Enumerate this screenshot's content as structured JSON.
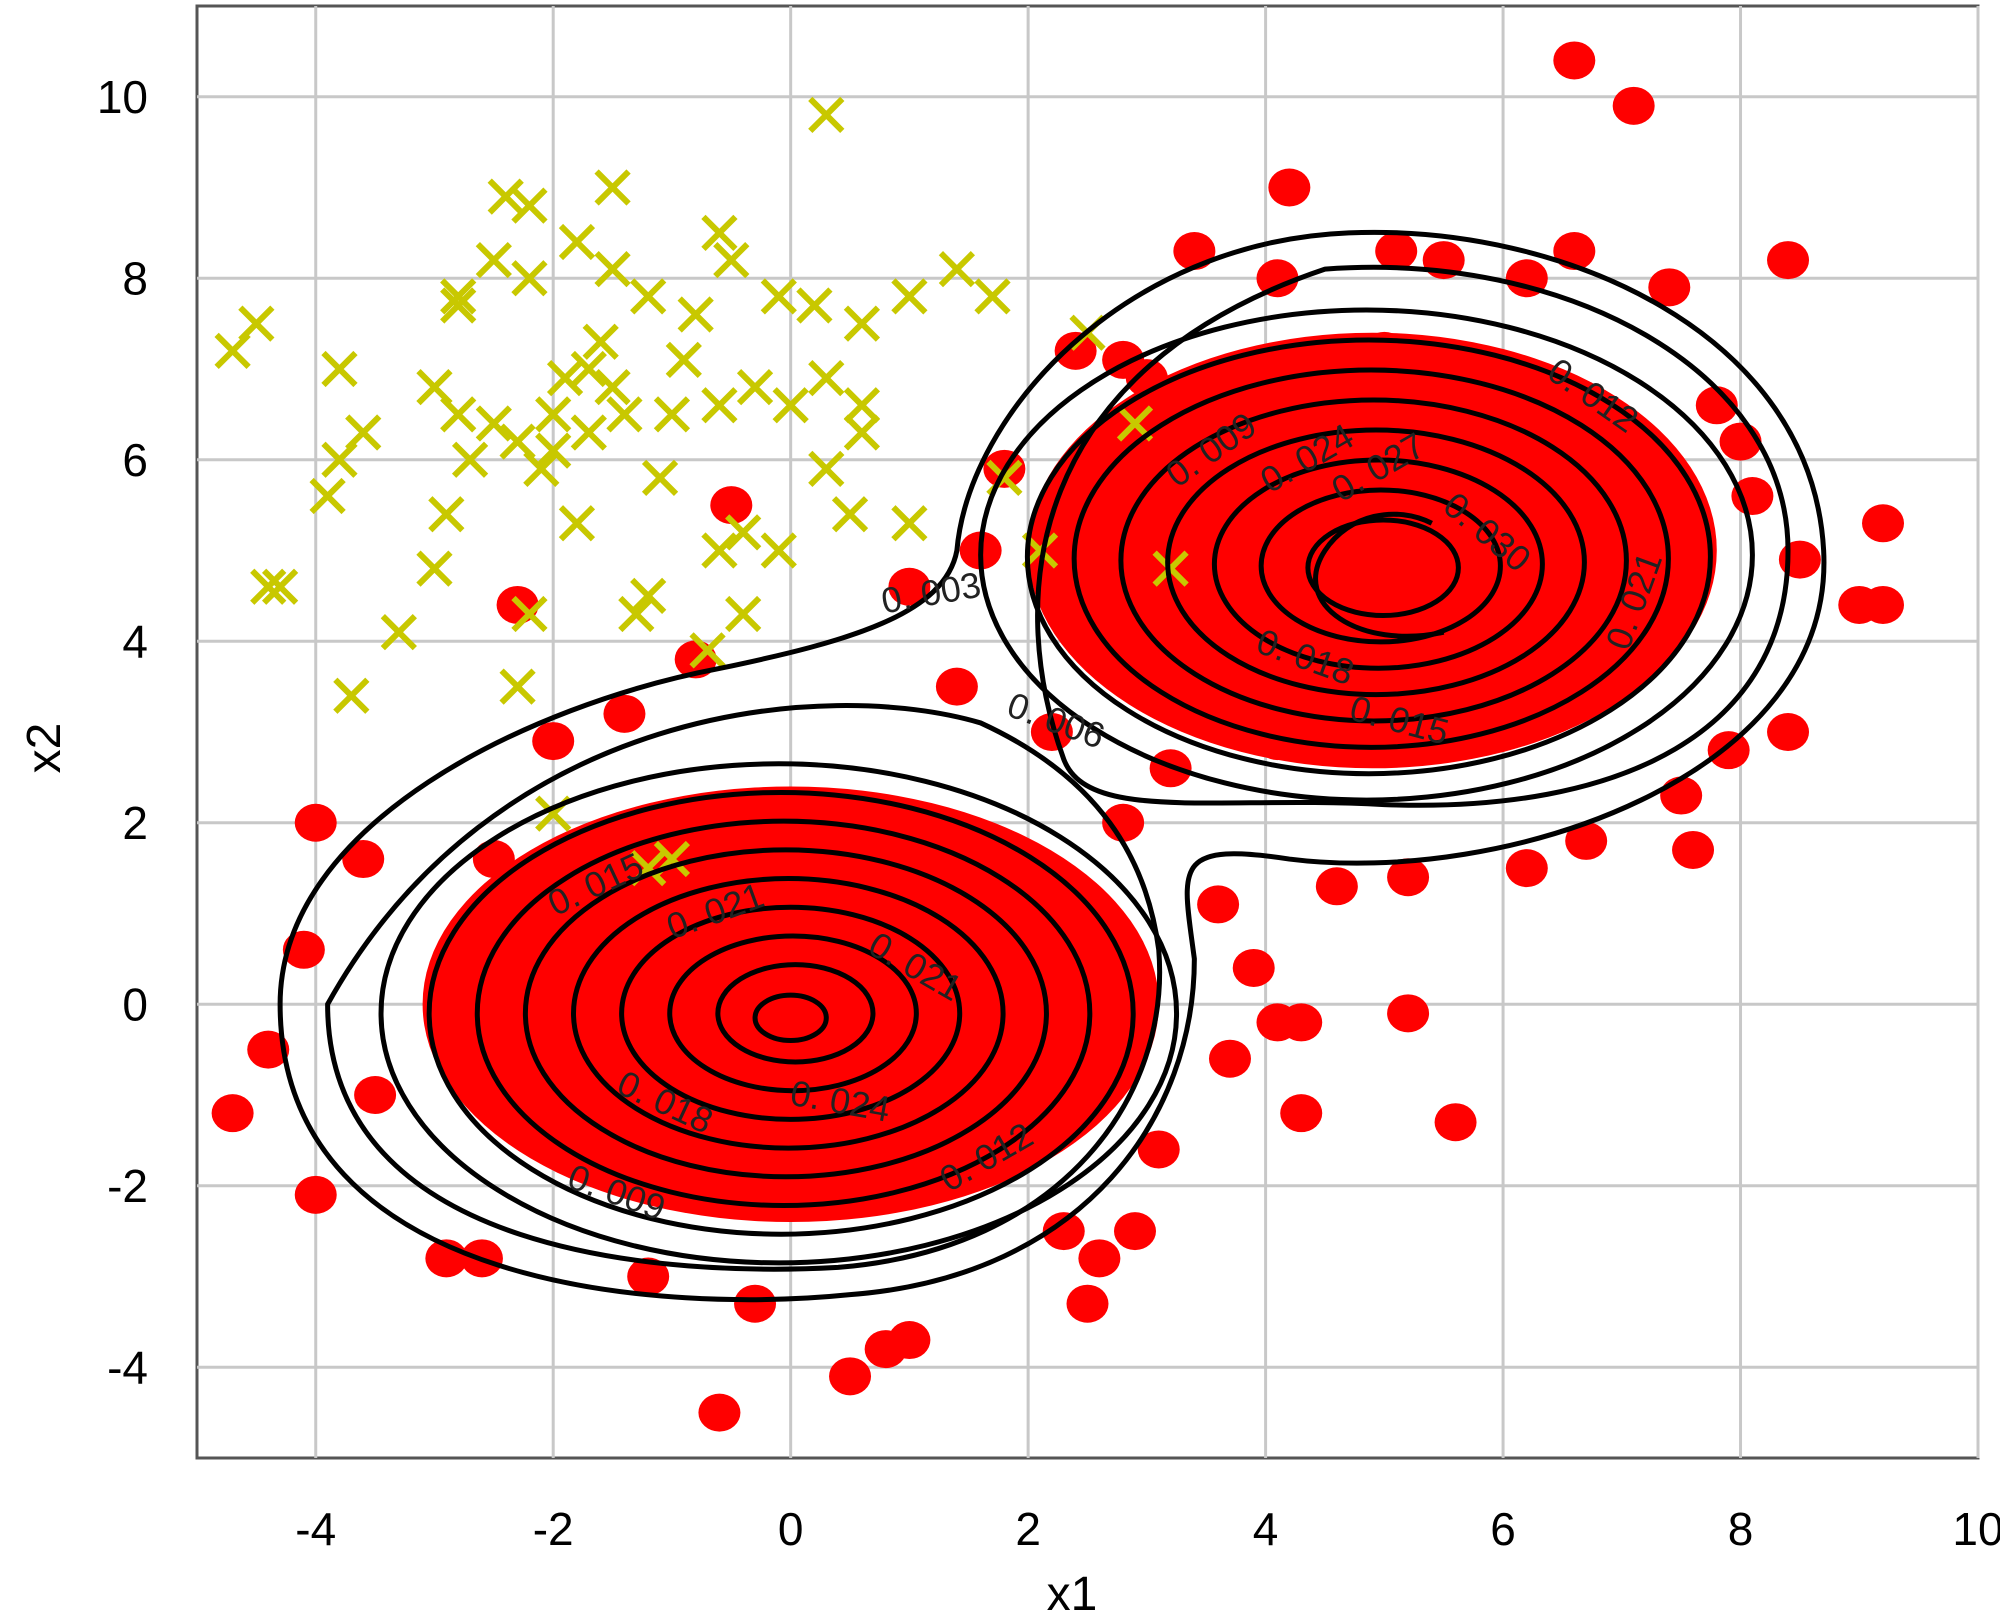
{
  "chart_data": {
    "type": "scatter",
    "title": "",
    "xlabel": "x1",
    "ylabel": "x2",
    "xlim": [
      -5,
      10
    ],
    "ylim": [
      -5,
      11
    ],
    "xticks": [
      "-4",
      "-2",
      "0",
      "2",
      "4",
      "6",
      "8",
      "10"
    ],
    "yticks": [
      "10",
      "8",
      "6",
      "4",
      "2",
      "0",
      "-2",
      "-4"
    ],
    "xtick_values": [
      -4,
      -2,
      0,
      2,
      4,
      6,
      8,
      10
    ],
    "ytick_values": [
      10,
      8,
      6,
      4,
      2,
      0,
      -2,
      -4
    ],
    "grid": true,
    "legend": "none",
    "colors": {
      "class1": "#ff0000",
      "class2": "#c8c800",
      "contour": "#000000",
      "grid": "#c8c8c8"
    },
    "series": [
      {
        "marker": "circle",
        "color": "#ff0000",
        "points": [
          [
            6.6,
            10.4
          ],
          [
            7.1,
            9.9
          ],
          [
            4.2,
            9.0
          ],
          [
            8.4,
            8.2
          ],
          [
            6.6,
            8.3
          ],
          [
            7.4,
            7.9
          ],
          [
            3.4,
            8.3
          ],
          [
            4.1,
            8.0
          ],
          [
            5.1,
            8.3
          ],
          [
            5.5,
            8.2
          ],
          [
            6.2,
            8.0
          ],
          [
            2.4,
            7.2
          ],
          [
            2.8,
            7.1
          ],
          [
            3.0,
            6.9
          ],
          [
            7.8,
            6.6
          ],
          [
            8.0,
            6.2
          ],
          [
            8.1,
            5.6
          ],
          [
            8.5,
            4.9
          ],
          [
            9.2,
            5.3
          ],
          [
            9.0,
            4.4
          ],
          [
            9.2,
            4.4
          ],
          [
            8.4,
            3.0
          ],
          [
            7.9,
            2.8
          ],
          [
            7.5,
            2.3
          ],
          [
            7.6,
            1.7
          ],
          [
            6.7,
            1.8
          ],
          [
            6.2,
            1.5
          ],
          [
            5.2,
            1.4
          ],
          [
            4.6,
            1.3
          ],
          [
            3.6,
            1.1
          ],
          [
            3.9,
            0.4
          ],
          [
            4.1,
            -0.2
          ],
          [
            4.3,
            -0.2
          ],
          [
            5.2,
            -0.1
          ],
          [
            5.6,
            -1.3
          ],
          [
            4.3,
            -1.2
          ],
          [
            3.7,
            -0.6
          ],
          [
            3.1,
            -1.6
          ],
          [
            1.8,
            5.9
          ],
          [
            1.6,
            5.0
          ],
          [
            1.0,
            4.6
          ],
          [
            -0.5,
            5.5
          ],
          [
            -2.3,
            4.4
          ],
          [
            -0.8,
            3.8
          ],
          [
            -4.0,
            2.0
          ],
          [
            -3.6,
            1.6
          ],
          [
            -4.1,
            0.6
          ],
          [
            -4.4,
            -0.5
          ],
          [
            -4.7,
            -1.2
          ],
          [
            -4.0,
            -2.1
          ],
          [
            -2.9,
            -2.8
          ],
          [
            -2.6,
            -2.8
          ],
          [
            -0.6,
            -4.5
          ],
          [
            0.5,
            -4.1
          ],
          [
            1.0,
            -3.7
          ],
          [
            0.8,
            -3.8
          ],
          [
            2.5,
            -3.3
          ],
          [
            2.6,
            -2.8
          ],
          [
            2.3,
            -2.5
          ],
          [
            2.9,
            -2.5
          ],
          [
            -1.2,
            -3.0
          ],
          [
            -0.3,
            -3.3
          ],
          [
            -3.5,
            -1.0
          ],
          [
            -2.5,
            1.6
          ],
          [
            -2.0,
            2.9
          ],
          [
            -1.4,
            3.2
          ],
          [
            1.4,
            3.5
          ],
          [
            2.2,
            3.0
          ],
          [
            2.8,
            2.0
          ],
          [
            3.2,
            2.6
          ],
          [
            0.2,
            2.1
          ],
          [
            -0.5,
            1.8
          ],
          [
            4.1,
            2.9
          ],
          [
            5.8,
            3.2
          ],
          [
            6.4,
            3.6
          ],
          [
            6.9,
            4.7
          ],
          [
            4.7,
            6.6
          ],
          [
            5.0,
            7.2
          ],
          [
            3.6,
            5.8
          ],
          [
            3.3,
            4.8
          ],
          [
            6.1,
            5.0
          ],
          [
            5.5,
            6.1
          ],
          [
            4.4,
            4.1
          ],
          [
            5.4,
            4.0
          ],
          [
            -1.8,
            -0.5
          ],
          [
            -1.0,
            0.3
          ],
          [
            0.4,
            0.8
          ],
          [
            1.1,
            -0.3
          ],
          [
            -0.2,
            -1.2
          ],
          [
            0.8,
            -1.6
          ],
          [
            -1.6,
            -1.8
          ],
          [
            2.0,
            -0.8
          ],
          [
            1.7,
            1.2
          ],
          [
            -2.8,
            -0.2
          ],
          [
            -2.2,
            0.6
          ]
        ]
      },
      {
        "marker": "x",
        "color": "#c8c800",
        "points": [
          [
            0.3,
            9.8
          ],
          [
            -2.4,
            8.9
          ],
          [
            -2.2,
            8.8
          ],
          [
            -1.5,
            9.0
          ],
          [
            -0.6,
            8.5
          ],
          [
            -0.5,
            8.2
          ],
          [
            -1.8,
            8.4
          ],
          [
            -2.5,
            8.2
          ],
          [
            -2.2,
            8.0
          ],
          [
            -1.5,
            8.1
          ],
          [
            1.4,
            8.1
          ],
          [
            1.7,
            7.8
          ],
          [
            1.0,
            7.8
          ],
          [
            0.6,
            7.5
          ],
          [
            0.2,
            7.7
          ],
          [
            -0.1,
            7.8
          ],
          [
            -0.8,
            7.6
          ],
          [
            -1.2,
            7.8
          ],
          [
            -2.8,
            7.8
          ],
          [
            -2.8,
            7.7
          ],
          [
            -4.5,
            7.5
          ],
          [
            -4.7,
            7.2
          ],
          [
            -3.8,
            7.0
          ],
          [
            -3.0,
            6.8
          ],
          [
            -2.8,
            6.5
          ],
          [
            -2.5,
            6.4
          ],
          [
            -2.3,
            6.2
          ],
          [
            -2.0,
            6.1
          ],
          [
            -1.7,
            6.3
          ],
          [
            -1.4,
            6.5
          ],
          [
            -1.0,
            6.5
          ],
          [
            -0.6,
            6.6
          ],
          [
            -0.3,
            6.8
          ],
          [
            0.0,
            6.6
          ],
          [
            0.3,
            6.9
          ],
          [
            0.6,
            6.6
          ],
          [
            0.6,
            6.3
          ],
          [
            -3.6,
            6.3
          ],
          [
            -3.8,
            6.0
          ],
          [
            -3.9,
            5.6
          ],
          [
            -2.9,
            5.4
          ],
          [
            -1.8,
            5.3
          ],
          [
            -1.1,
            5.8
          ],
          [
            -0.4,
            5.2
          ],
          [
            -0.1,
            5.0
          ],
          [
            0.5,
            5.4
          ],
          [
            1.0,
            5.3
          ],
          [
            0.3,
            5.9
          ],
          [
            -3.0,
            4.8
          ],
          [
            -2.2,
            4.3
          ],
          [
            -1.3,
            4.3
          ],
          [
            -1.2,
            4.5
          ],
          [
            -0.4,
            4.3
          ],
          [
            -0.6,
            5.0
          ],
          [
            -3.3,
            4.1
          ],
          [
            -4.3,
            4.6
          ],
          [
            -4.4,
            4.6
          ],
          [
            -3.7,
            3.4
          ],
          [
            -2.3,
            3.5
          ],
          [
            -0.7,
            3.9
          ],
          [
            2.5,
            7.4
          ],
          [
            1.8,
            5.8
          ],
          [
            2.1,
            5.0
          ],
          [
            3.2,
            4.8
          ],
          [
            2.9,
            6.4
          ],
          [
            -2.0,
            2.1
          ],
          [
            -1.0,
            1.6
          ],
          [
            -1.2,
            1.5
          ],
          [
            -1.7,
            7.0
          ],
          [
            -1.5,
            6.8
          ],
          [
            -2.1,
            5.9
          ],
          [
            -2.7,
            6.0
          ],
          [
            -1.9,
            6.9
          ],
          [
            -0.9,
            7.1
          ],
          [
            -1.6,
            7.3
          ],
          [
            -2.0,
            6.5
          ]
        ]
      }
    ],
    "contours": [
      {
        "level": "0.003",
        "cx": -0.3,
        "cy": 0.0,
        "rx": 4.2,
        "ry": 3.3,
        "cx2": 4.7,
        "cy2": 5.0,
        "rx2": 4.0,
        "ry2": 3.4
      },
      {
        "level": "0.006",
        "cx": -0.1,
        "cy": -0.1,
        "rx": 3.7,
        "ry": 3.0,
        "cx2": 4.8,
        "cy2": 5.0,
        "rx2": 3.6,
        "ry2": 3.1
      }
    ],
    "contour_labels": [
      {
        "text": "0. 003",
        "x": 1.2,
        "y": 4.4,
        "rotate": -10
      },
      {
        "text": "0. 006",
        "x": 2.2,
        "y": 3.0,
        "rotate": 20
      },
      {
        "text": "0. 009",
        "x": 3.6,
        "y": 6.0,
        "rotate": -35
      },
      {
        "text": "0. 012",
        "x": 6.7,
        "y": 6.6,
        "rotate": 35
      },
      {
        "text": "0. 024",
        "x": 4.4,
        "y": 5.9,
        "rotate": -30
      },
      {
        "text": "0. 027",
        "x": 5.0,
        "y": 5.8,
        "rotate": -30
      },
      {
        "text": "0. 030",
        "x": 5.8,
        "y": 5.1,
        "rotate": 40
      },
      {
        "text": "0. 021",
        "x": 7.2,
        "y": 4.4,
        "rotate": -70
      },
      {
        "text": "0. 018",
        "x": 4.3,
        "y": 3.7,
        "rotate": 20
      },
      {
        "text": "0. 015",
        "x": 5.1,
        "y": 3.0,
        "rotate": 15
      },
      {
        "text": "0. 015",
        "x": -1.6,
        "y": 1.2,
        "rotate": -25
      },
      {
        "text": "0. 021",
        "x": -0.6,
        "y": 0.9,
        "rotate": -20
      },
      {
        "text": "0. 021",
        "x": 1.0,
        "y": 0.3,
        "rotate": 30
      },
      {
        "text": "0. 018",
        "x": -1.1,
        "y": -1.2,
        "rotate": 25
      },
      {
        "text": "0. 024",
        "x": 0.4,
        "y": -1.2,
        "rotate": 10
      },
      {
        "text": "0. 009",
        "x": -1.5,
        "y": -2.2,
        "rotate": 20
      },
      {
        "text": "0. 012",
        "x": 1.7,
        "y": -1.8,
        "rotate": -30
      }
    ]
  }
}
